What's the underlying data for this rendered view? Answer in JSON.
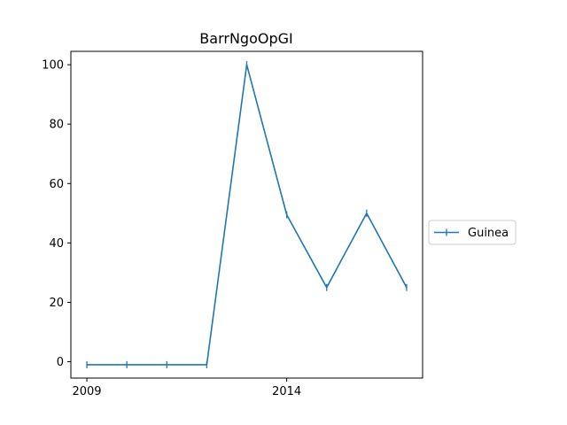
{
  "chart_data": {
    "type": "line",
    "title": "BarrNgoOpGI",
    "xlabel": "",
    "ylabel": "",
    "x": [
      2009,
      2010,
      2011,
      2012,
      2013,
      2014,
      2015,
      2016,
      2017
    ],
    "series": [
      {
        "name": "Guinea",
        "color": "#1f77b4",
        "values": [
          -1,
          -1,
          -1,
          -1,
          100,
          49.5,
          25,
          50,
          25
        ]
      }
    ],
    "xlim": [
      2008.6,
      2017.4
    ],
    "ylim": [
      -5.5,
      104.5
    ],
    "x_ticks": [
      2009,
      2014
    ],
    "y_ticks": [
      0,
      20,
      40,
      60,
      80,
      100
    ],
    "grid": false,
    "legend_position": "center-right-outside",
    "marker": "vertical-line"
  }
}
